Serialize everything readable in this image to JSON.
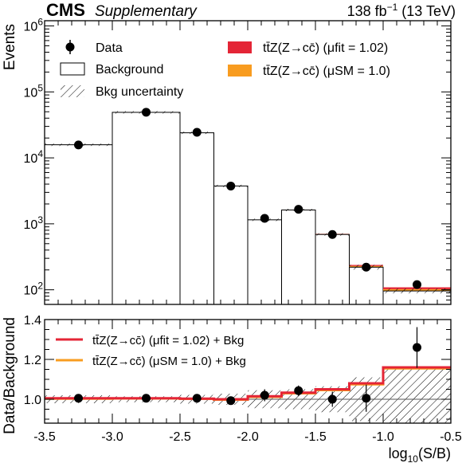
{
  "header": {
    "experiment": "CMS",
    "tag": "Supplementary",
    "lumi_main": "138 fb",
    "lumi_exp": "−1",
    "lumi_tail": " (13 TeV)"
  },
  "colors": {
    "fit": "#e42536",
    "sm": "#f89c20",
    "hatch": "#000000",
    "background_fill": "#ffffff"
  },
  "chart_data": [
    {
      "type": "histogram",
      "title": "",
      "xlabel": "",
      "ylabel": "Events",
      "yscale": "log",
      "xlim": [
        -3.5,
        -0.5
      ],
      "ylim": [
        60,
        1200000
      ],
      "y_tick_labels": [
        {
          "value": 100,
          "base": "10",
          "exp": "2"
        },
        {
          "value": 1000,
          "base": "10",
          "exp": "3"
        },
        {
          "value": 10000,
          "base": "10",
          "exp": "4"
        },
        {
          "value": 100000,
          "base": "10",
          "exp": "5"
        },
        {
          "value": 1000000,
          "base": "10",
          "exp": "6"
        }
      ],
      "bin_edges": [
        -3.5,
        -3.0,
        -2.5,
        -2.25,
        -2.0,
        -1.75,
        -1.5,
        -1.25,
        -1.0,
        -0.5
      ],
      "background": [
        15800,
        49000,
        24000,
        3750,
        1150,
        1620,
        690,
        220,
        96
      ],
      "signal_fit": [
        1,
        2,
        2,
        3,
        4,
        6,
        8,
        9,
        7
      ],
      "signal_sm": [
        1,
        2,
        2,
        3,
        4,
        6,
        8,
        9,
        6
      ],
      "data": {
        "x": [
          -3.25,
          -2.75,
          -2.375,
          -2.125,
          -1.875,
          -1.625,
          -1.375,
          -1.125,
          -0.75
        ],
        "y": [
          15700,
          49200,
          24400,
          3740,
          1210,
          1660,
          690,
          220,
          120
        ]
      },
      "legend": {
        "placement": "top",
        "entries": [
          {
            "key": "data",
            "label": "Data"
          },
          {
            "key": "background",
            "label": "Background"
          },
          {
            "key": "bkg_unc",
            "label": "Bkg uncertainty"
          },
          {
            "key": "fit",
            "label": "tt̄Z(Z→cc̄) (μfit = 1.02)"
          },
          {
            "key": "sm",
            "label": "tt̄Z(Z→cc̄) (μSM = 1.0)"
          }
        ]
      }
    },
    {
      "type": "ratio",
      "xlabel": "log10(S/B)",
      "ylabel": "Data/Background",
      "xlim": [
        -3.5,
        -0.5
      ],
      "ylim": [
        0.88,
        1.4
      ],
      "x_ticks": [
        -3.5,
        -3.0,
        -2.5,
        -2.0,
        -1.5,
        -1.0,
        -0.5
      ],
      "x_tick_labels": [
        "-3.5",
        "-3.0",
        "-2.5",
        "-2.0",
        "-1.5",
        "-1.0",
        "-0.5"
      ],
      "y_ticks": [
        1.0,
        1.2,
        1.4
      ],
      "y_tick_labels": [
        "1.0",
        "1.2",
        "1.4"
      ],
      "reference_line": 1.0,
      "bin_edges": [
        -3.5,
        -3.0,
        -2.5,
        -2.25,
        -2.0,
        -1.75,
        -1.5,
        -1.25,
        -1.0,
        -0.5
      ],
      "fit_ratio": [
        1.005,
        1.005,
        1.003,
        1.0,
        1.015,
        1.033,
        1.05,
        1.08,
        1.16
      ],
      "sm_ratio": [
        1.003,
        1.004,
        1.002,
        0.998,
        1.012,
        1.03,
        1.046,
        1.075,
        1.155
      ],
      "uncertainty_half_width": [
        0.02,
        0.015,
        0.022,
        0.028,
        0.045,
        0.05,
        0.065,
        0.11,
        0.16
      ],
      "data": {
        "x": [
          -3.25,
          -2.75,
          -2.375,
          -2.125,
          -1.875,
          -1.625,
          -1.375,
          -1.125,
          -0.75
        ],
        "y": [
          1.005,
          1.005,
          1.005,
          0.993,
          1.02,
          1.043,
          1.0,
          1.005,
          1.26
        ],
        "err": [
          0.008,
          0.005,
          0.007,
          0.017,
          0.03,
          0.026,
          0.038,
          0.068,
          0.102
        ]
      },
      "legend": {
        "placement": "top-left",
        "entries": [
          {
            "key": "fit",
            "label": "tt̄Z(Z→cc̄) (μfit = 1.02) + Bkg"
          },
          {
            "key": "sm",
            "label": "tt̄Z(Z→cc̄) (μSM = 1.0) + Bkg"
          }
        ]
      }
    }
  ]
}
